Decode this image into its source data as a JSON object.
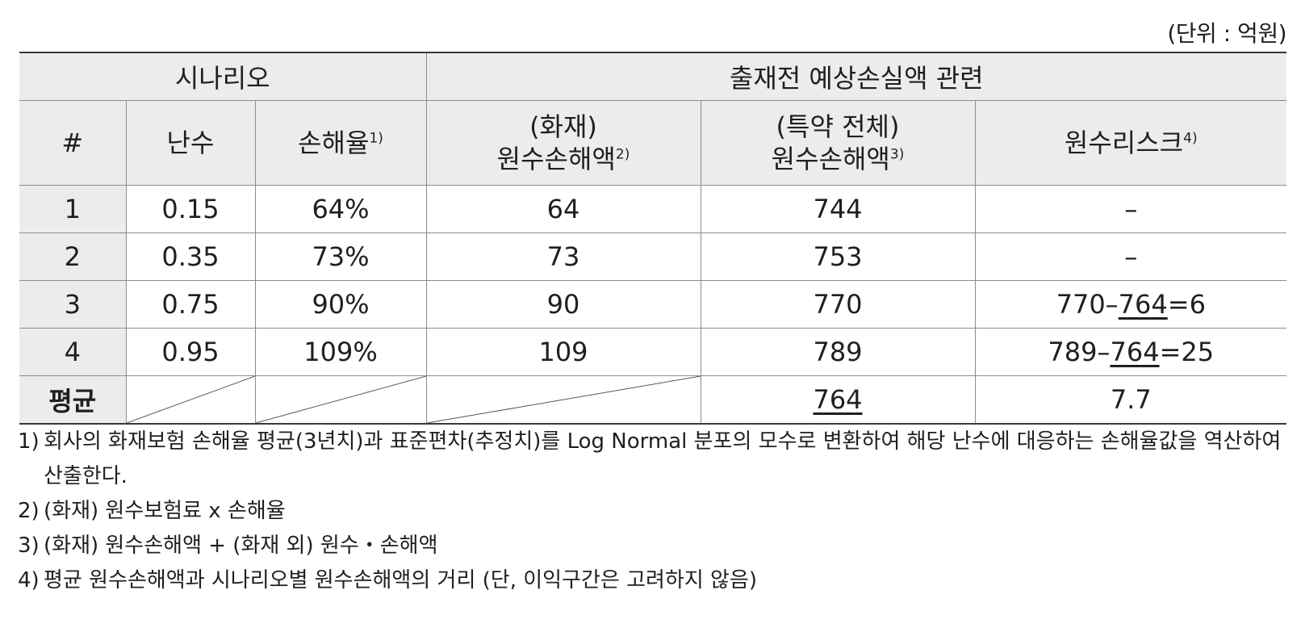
{
  "unit_label": "(단위 : 억원)",
  "table": {
    "group_headers": {
      "scenario": "시나리오",
      "loss": "출재전 예상손실액 관련"
    },
    "col_headers": {
      "index": "#",
      "random": "난수",
      "loss_ratio": "손해율",
      "loss_ratio_note": "1)",
      "fire_line1": "(화재)",
      "fire_line2": "원수손해액",
      "fire_note": "2)",
      "total_line1": "(특약 전체)",
      "total_line2": "원수손해액",
      "total_note": "3)",
      "risk": "원수리스크",
      "risk_note": "4)"
    },
    "rows": [
      {
        "index": "1",
        "random": "0.15",
        "loss_ratio": "64%",
        "fire": "64",
        "total": "744",
        "risk": "–"
      },
      {
        "index": "2",
        "random": "0.35",
        "loss_ratio": "73%",
        "fire": "73",
        "total": "753",
        "risk": "–"
      },
      {
        "index": "3",
        "random": "0.75",
        "loss_ratio": "90%",
        "fire": "90",
        "total": "770",
        "risk_a": "770–",
        "risk_b": "764",
        "risk_c": "=6"
      },
      {
        "index": "4",
        "random": "0.95",
        "loss_ratio": "109%",
        "fire": "109",
        "total": "789",
        "risk_a": "789–",
        "risk_b": "764",
        "risk_c": "=25"
      }
    ],
    "average": {
      "label": "평균",
      "total": "764",
      "risk": "7.7"
    }
  },
  "notes": [
    {
      "num": "1)",
      "text": "회사의 화재보험 손해율 평균(3년치)과 표준편차(추정치)를 Log Normal 분포의 모수로 변환하여 해당 난수에 대응하는 손해율값을 역산하여 산출한다."
    },
    {
      "num": "2)",
      "text": "(화재) 원수보험료 x 손해율"
    },
    {
      "num": "3)",
      "text": "(화재) 원수손해액 + (화재 외) 원수・손해액"
    },
    {
      "num": "4)",
      "text": "평균 원수손해액과 시나리오별 원수손해액의 거리 (단, 이익구간은 고려하지 않음)"
    }
  ]
}
